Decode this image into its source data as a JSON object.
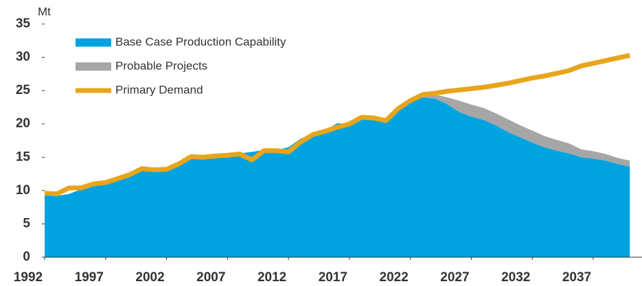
{
  "chart_data": {
    "type": "stacked-area-line",
    "y_label": "Mt",
    "x": [
      1992,
      1993,
      1994,
      1995,
      1996,
      1997,
      1998,
      1999,
      2000,
      2001,
      2002,
      2003,
      2004,
      2005,
      2006,
      2007,
      2008,
      2009,
      2010,
      2011,
      2012,
      2013,
      2014,
      2015,
      2016,
      2017,
      2018,
      2019,
      2020,
      2021,
      2022,
      2023,
      2024,
      2025,
      2026,
      2027,
      2028,
      2029,
      2030,
      2031,
      2032,
      2033,
      2034,
      2035,
      2036,
      2037,
      2038,
      2039,
      2040
    ],
    "series": [
      {
        "name": "Base Case Production Capability",
        "color": "#00a3e0",
        "kind": "area",
        "values": [
          9.3,
          9.2,
          9.5,
          10.2,
          10.8,
          11.1,
          11.7,
          12.3,
          13.1,
          13.4,
          13.3,
          14.0,
          15.0,
          14.9,
          15.2,
          15.3,
          15.6,
          15.8,
          16.1,
          16.1,
          16.5,
          17.8,
          18.4,
          19.0,
          20.1,
          20.0,
          20.8,
          20.9,
          20.5,
          22.1,
          23.3,
          24.0,
          23.8,
          23.0,
          21.8,
          21.1,
          20.6,
          19.8,
          18.8,
          18.0,
          17.2,
          16.5,
          16.0,
          15.6,
          15.0,
          14.8,
          14.5,
          14.0,
          13.6
        ]
      },
      {
        "name": "Probable Projects",
        "color": "#a6a6a6",
        "kind": "area",
        "values": [
          0,
          0,
          0,
          0,
          0,
          0,
          0,
          0,
          0,
          0,
          0,
          0,
          0,
          0,
          0,
          0,
          0,
          0,
          0,
          0,
          0,
          0,
          0,
          0,
          0,
          0,
          0,
          0,
          0,
          0,
          0,
          0,
          0.6,
          1.0,
          1.7,
          1.8,
          1.8,
          1.8,
          1.9,
          1.8,
          1.8,
          1.7,
          1.6,
          1.5,
          1.2,
          1.1,
          1.0,
          0.9,
          0.9
        ]
      },
      {
        "name": "Primary Demand",
        "color": "#e8a51c",
        "kind": "line",
        "values": [
          9.6,
          9.5,
          10.4,
          10.4,
          11.0,
          11.2,
          11.8,
          12.4,
          13.3,
          13.1,
          13.2,
          14.0,
          15.1,
          15.0,
          15.2,
          15.3,
          15.5,
          14.6,
          16.0,
          16.0,
          15.8,
          17.3,
          18.4,
          18.9,
          19.5,
          20.0,
          21.0,
          20.9,
          20.5,
          22.3,
          23.5,
          24.4,
          24.6,
          24.9,
          25.1,
          25.3,
          25.5,
          25.8,
          26.1,
          26.5,
          26.9,
          27.2,
          27.6,
          28.0,
          28.7,
          29.1,
          29.5,
          29.9,
          30.3
        ]
      }
    ],
    "xlim": [
      1992,
      2041
    ],
    "xticks": [
      1992,
      1997,
      2002,
      2007,
      2012,
      2017,
      2022,
      2027,
      2032,
      2037
    ],
    "ylim": [
      0,
      35
    ],
    "yticks": [
      0,
      5,
      10,
      15,
      20,
      25,
      30,
      35
    ],
    "legend": "upper left"
  }
}
